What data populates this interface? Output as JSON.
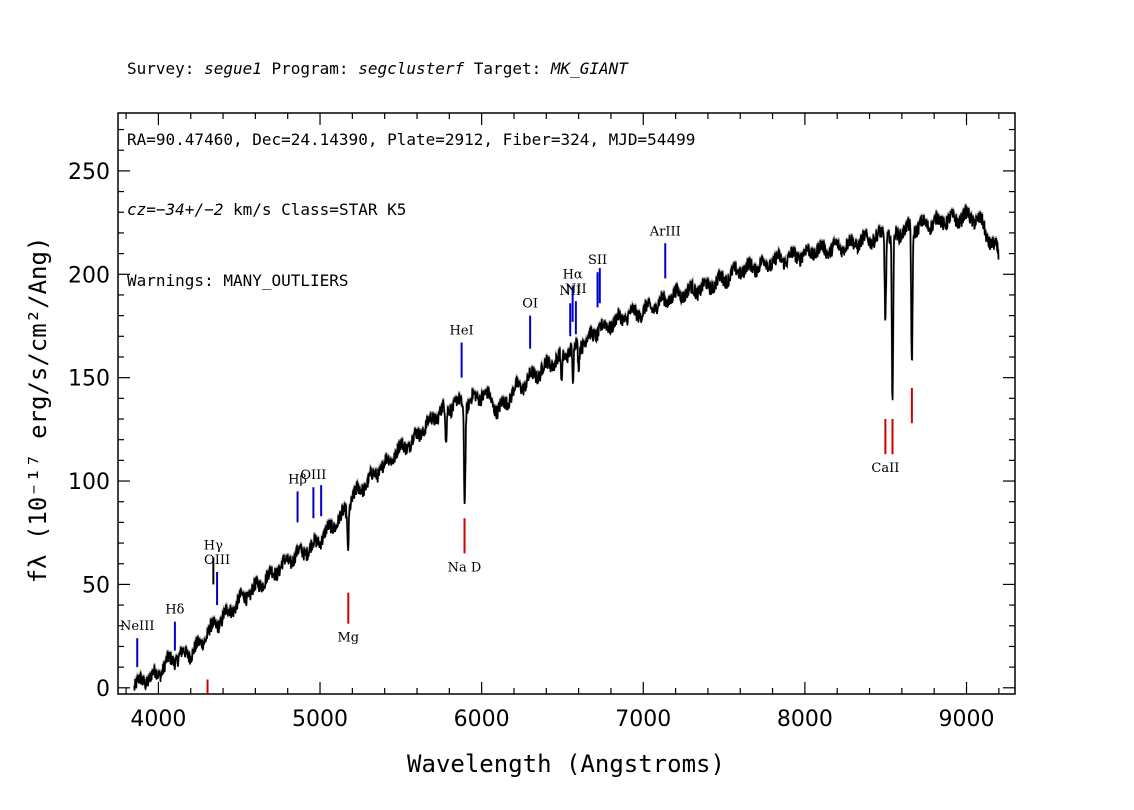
{
  "header": {
    "line1": {
      "survey_label": "Survey: ",
      "survey": "segue1",
      "program_label": " Program: ",
      "program": "segclusterf",
      "target_label": " Target: ",
      "target": "MK_GIANT"
    },
    "line2": "RA=90.47460, Dec=24.14390, Plate=2912, Fiber=324, MJD=54499",
    "line3": {
      "cz": "cz",
      "eq": "=",
      "vel": "−34+/−2",
      "rest": " km/s Class=STAR K5"
    },
    "line4": "Warnings: MANY_OUTLIERS"
  },
  "chart_data": {
    "type": "line",
    "xlabel": "Wavelength (Angstroms)",
    "ylabel": "fλ (10⁻¹⁷ erg/s/cm²/Ang)",
    "xlim": [
      3750,
      9300
    ],
    "ylim": [
      -3,
      278
    ],
    "x_ticks": [
      4000,
      5000,
      6000,
      7000,
      8000,
      9000
    ],
    "y_ticks": [
      0,
      50,
      100,
      150,
      200,
      250
    ],
    "series": [
      {
        "color": "#000000",
        "x": [
          3850,
          3900,
          3950,
          4000,
          4050,
          4100,
          4150,
          4200,
          4250,
          4300,
          4350,
          4400,
          4450,
          4500,
          4550,
          4600,
          4650,
          4700,
          4750,
          4800,
          4850,
          4900,
          4950,
          5000,
          5050,
          5100,
          5150,
          5200,
          5250,
          5300,
          5350,
          5400,
          5450,
          5500,
          5550,
          5600,
          5650,
          5700,
          5750,
          5800,
          5850,
          5900,
          5950,
          6000,
          6050,
          6100,
          6150,
          6200,
          6250,
          6300,
          6350,
          6400,
          6450,
          6500,
          6550,
          6600,
          6650,
          6700,
          6750,
          6800,
          6850,
          6900,
          6950,
          7000,
          7050,
          7100,
          7150,
          7200,
          7250,
          7300,
          7350,
          7400,
          7450,
          7500,
          7550,
          7600,
          7650,
          7700,
          7750,
          7800,
          7850,
          7900,
          7950,
          8000,
          8050,
          8100,
          8150,
          8200,
          8250,
          8300,
          8350,
          8400,
          8450,
          8500,
          8550,
          8600,
          8650,
          8700,
          8750,
          8800,
          8850,
          8900,
          8950,
          9000,
          9050,
          9100,
          9150,
          9200
        ],
        "values": [
          1,
          3,
          5,
          7,
          12,
          14,
          16,
          17,
          20,
          26,
          30,
          34,
          38,
          42,
          45,
          48,
          52,
          55,
          58,
          61,
          64,
          66,
          68,
          72,
          76,
          80,
          84,
          92,
          96,
          100,
          104,
          108,
          112,
          116,
          118,
          122,
          126,
          130,
          134,
          136,
          138,
          136,
          140,
          142,
          140,
          134,
          138,
          144,
          146,
          150,
          152,
          156,
          158,
          160,
          164,
          166,
          168,
          172,
          174,
          176,
          178,
          180,
          181,
          182,
          184,
          186,
          188,
          190,
          191,
          192,
          193,
          194,
          196,
          198,
          200,
          202,
          203,
          204,
          205,
          206,
          207,
          208,
          209,
          210,
          211,
          212,
          212,
          213,
          214,
          215,
          216,
          217,
          218,
          220,
          218,
          221,
          222,
          223,
          224,
          225,
          226,
          226,
          227,
          228,
          227,
          224,
          215,
          210
        ]
      }
    ],
    "absorption_dips": [
      {
        "x": 5173,
        "depth": 20
      },
      {
        "x": 5895,
        "depth": 45
      },
      {
        "x": 5780,
        "depth": 18
      },
      {
        "x": 6495,
        "depth": 12
      },
      {
        "x": 6565,
        "depth": 16
      },
      {
        "x": 6600,
        "depth": 10
      },
      {
        "x": 8498,
        "depth": 40
      },
      {
        "x": 8542,
        "depth": 80
      },
      {
        "x": 8662,
        "depth": 65
      }
    ],
    "line_markers": [
      {
        "label": "NeIII",
        "x": 3869,
        "color": "#0000cc",
        "y0": 10,
        "y1": 24
      },
      {
        "label": "Hδ",
        "x": 4102,
        "color": "#0000cc",
        "y0": 18,
        "y1": 32
      },
      {
        "label": "Hγ",
        "x": 4340,
        "color": "#000000",
        "y0": 50,
        "y1": 63
      },
      {
        "label": "OIII",
        "x": 4363,
        "color": "#0000cc",
        "y0": 40,
        "y1": 56
      },
      {
        "label": "Hβ",
        "x": 4861,
        "color": "#0000cc",
        "y0": 80,
        "y1": 95
      },
      {
        "label": "OIII",
        "x": 4959,
        "color": "#0000cc",
        "y0": 82,
        "y1": 97
      },
      {
        "label": "",
        "x": 5007,
        "color": "#0000cc",
        "y0": 83,
        "y1": 98
      },
      {
        "label": "HeI",
        "x": 5876,
        "color": "#0000cc",
        "y0": 150,
        "y1": 167
      },
      {
        "label": "OI",
        "x": 6300,
        "color": "#0000cc",
        "y0": 164,
        "y1": 180
      },
      {
        "label": "NII",
        "x": 6548,
        "color": "#0000cc",
        "y0": 170,
        "y1": 186
      },
      {
        "label": "Hα",
        "x": 6563,
        "color": "#0000cc",
        "y0": 177,
        "y1": 194
      },
      {
        "label": "NII",
        "x": 6583,
        "color": "#0000cc",
        "y0": 171,
        "y1": 187
      },
      {
        "label": "SII",
        "x": 6717,
        "color": "#0000cc",
        "y0": 184,
        "y1": 201
      },
      {
        "label": "",
        "x": 6731,
        "color": "#0000cc",
        "y0": 186,
        "y1": 203
      },
      {
        "label": "ArIII",
        "x": 7136,
        "color": "#0000cc",
        "y0": 198,
        "y1": 215
      },
      {
        "label": "",
        "x": 4304,
        "color": "#cc0000",
        "y0": -3,
        "y1": 4
      },
      {
        "label": "Mg",
        "x": 5175,
        "color": "#cc0000",
        "y0": 31,
        "y1": 46
      },
      {
        "label": "Na  D",
        "x": 5894,
        "color": "#cc0000",
        "y0": 65,
        "y1": 82
      },
      {
        "label": "CaII",
        "x": 8498,
        "color": "#cc0000",
        "y0": 113,
        "y1": 130
      },
      {
        "label": "",
        "x": 8542,
        "color": "#cc0000",
        "y0": 113,
        "y1": 130
      },
      {
        "label": "",
        "x": 8662,
        "color": "#cc0000",
        "y0": 128,
        "y1": 145
      }
    ]
  }
}
